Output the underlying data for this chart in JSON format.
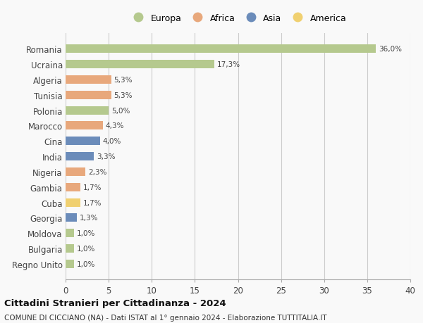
{
  "countries": [
    "Regno Unito",
    "Bulgaria",
    "Moldova",
    "Georgia",
    "Cuba",
    "Gambia",
    "Nigeria",
    "India",
    "Cina",
    "Marocco",
    "Polonia",
    "Tunisia",
    "Algeria",
    "Ucraina",
    "Romania"
  ],
  "values": [
    1.0,
    1.0,
    1.0,
    1.3,
    1.7,
    1.7,
    2.3,
    3.3,
    4.0,
    4.3,
    5.0,
    5.3,
    5.3,
    17.3,
    36.0
  ],
  "labels": [
    "1,0%",
    "1,0%",
    "1,0%",
    "1,3%",
    "1,7%",
    "1,7%",
    "2,3%",
    "3,3%",
    "4,0%",
    "4,3%",
    "5,0%",
    "5,3%",
    "5,3%",
    "17,3%",
    "36,0%"
  ],
  "colors": [
    "#b5c98e",
    "#b5c98e",
    "#b5c98e",
    "#6b8cba",
    "#f0d070",
    "#e8a87c",
    "#e8a87c",
    "#6b8cba",
    "#6b8cba",
    "#e8a87c",
    "#b5c98e",
    "#e8a87c",
    "#e8a87c",
    "#b5c98e",
    "#b5c98e"
  ],
  "continent_colors": {
    "Europa": "#b5c98e",
    "Africa": "#e8a87c",
    "Asia": "#6b8cba",
    "America": "#f0d070"
  },
  "xlim": [
    0,
    40
  ],
  "xticks": [
    0,
    5,
    10,
    15,
    20,
    25,
    30,
    35,
    40
  ],
  "title": "Cittadini Stranieri per Cittadinanza - 2024",
  "subtitle": "COMUNE DI CICCIANO (NA) - Dati ISTAT al 1° gennaio 2024 - Elaborazione TUTTITALIA.IT",
  "bg_color": "#f9f9f9",
  "grid_color": "#cccccc",
  "bar_height": 0.55
}
